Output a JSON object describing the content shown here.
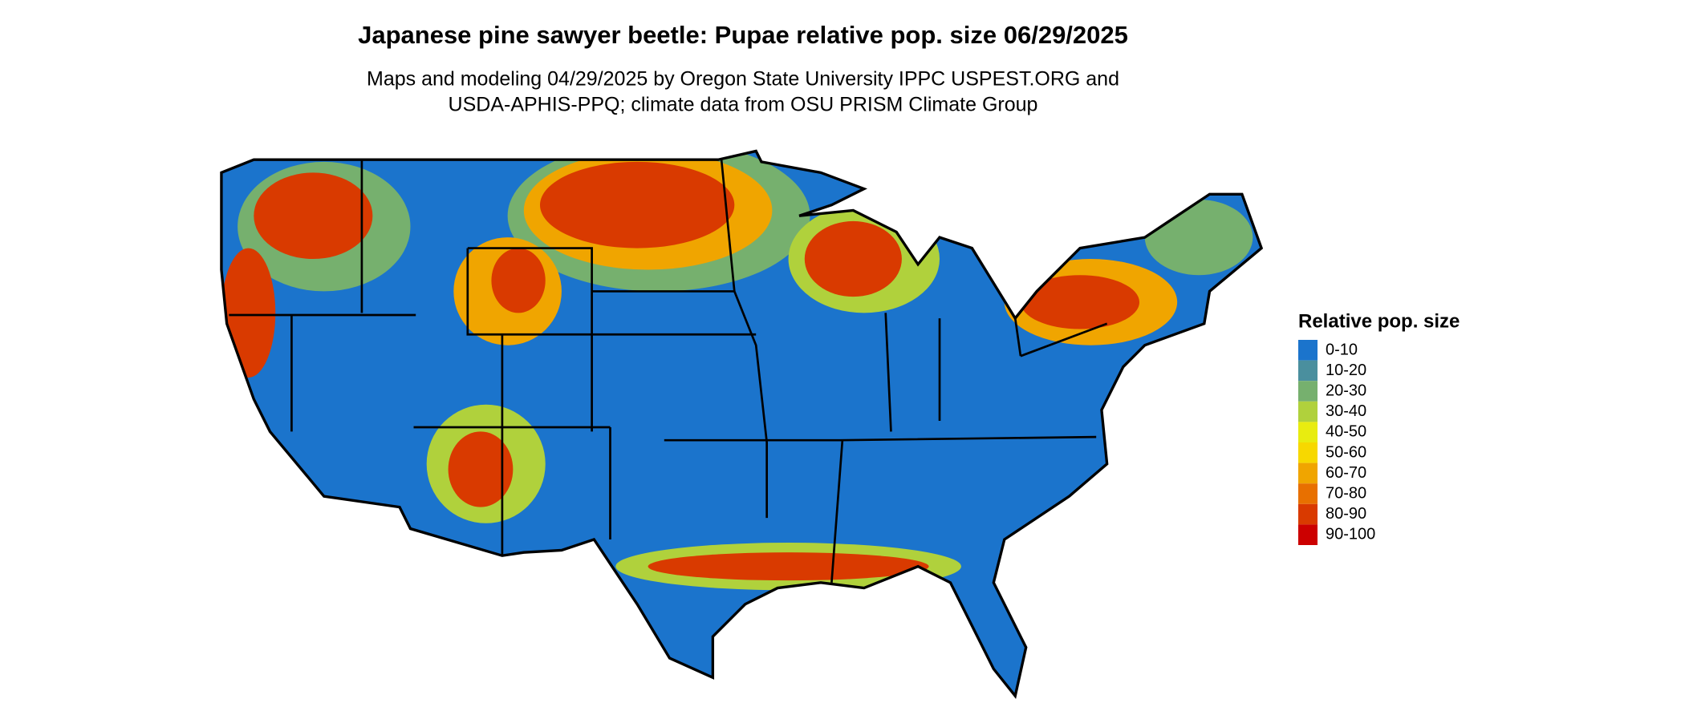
{
  "title": "Japanese pine sawyer beetle: Pupae relative pop. size 06/29/2025",
  "subtitle": [
    "Maps and modeling 04/29/2025 by Oregon State University IPPC USPEST.ORG and",
    "USDA-APHIS-PPQ; climate data from OSU PRISM Climate Group"
  ],
  "legend": {
    "title": "Relative pop. size",
    "items": [
      {
        "label": "0-10",
        "color": "#1b74cc"
      },
      {
        "label": "10-20",
        "color": "#4a8f9e"
      },
      {
        "label": "20-30",
        "color": "#76b06e"
      },
      {
        "label": "30-40",
        "color": "#b0d13c"
      },
      {
        "label": "40-50",
        "color": "#e8ec10"
      },
      {
        "label": "50-60",
        "color": "#f7d800"
      },
      {
        "label": "60-70",
        "color": "#f0a500"
      },
      {
        "label": "70-80",
        "color": "#e87000"
      },
      {
        "label": "80-90",
        "color": "#d93a00"
      },
      {
        "label": "90-100",
        "color": "#cc0000"
      }
    ]
  }
}
